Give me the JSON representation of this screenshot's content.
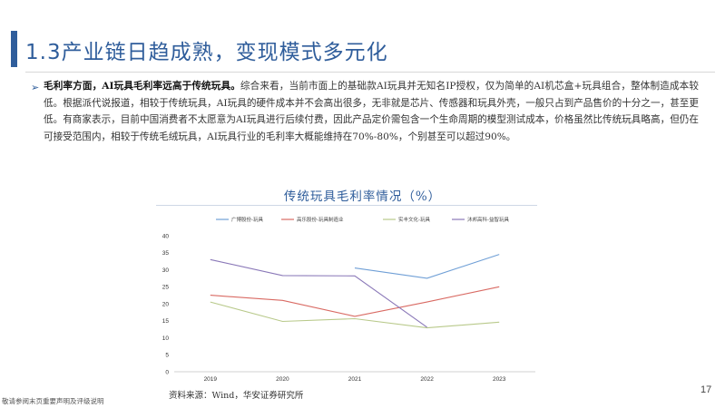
{
  "header": {
    "title": "1.3产业链日趋成熟，变现模式多元化"
  },
  "bullet_symbol": "➢",
  "body": {
    "lead": "毛利率方面，AI玩具毛利率远高于传统玩具。",
    "text": "综合来看，当前市面上的基础款AI玩具并无知名IP授权，仅为简单的AI机芯盒+玩具组合，整体制造成本较低。根据派代说报道，相较于传统玩具，AI玩具的硬件成本并不会高出很多，无非就是芯片、传感器和玩具外壳，一般只占到产品售价的十分之一，甚至更低。有商家表示，目前中国消费者不太愿意为AI玩具进行后续付费，因此产品定价需包含一个生命周期的模型测试成本，价格虽然比传统玩具略高，但仍在可接受范围内，相较于传统毛绒玩具，AI玩具行业的毛利率大概能维持在70%-80%，个别甚至可以超过90%。"
  },
  "chart_title": "传统玩具毛利率情况（%）",
  "chart_data": {
    "type": "line",
    "x": [
      "2019",
      "2020",
      "2021",
      "2022",
      "2023"
    ],
    "ylim": [
      0,
      40
    ],
    "yticks": [
      0,
      5,
      10,
      15,
      20,
      25,
      30,
      35,
      40
    ],
    "series": [
      {
        "name": "广博股份-玩具",
        "color": "#6f9fd6",
        "values": [
          null,
          null,
          30.5,
          27.5,
          34.5
        ]
      },
      {
        "name": "高乐股份-玩具制造业",
        "color": "#d96a63",
        "values": [
          22.5,
          21,
          16.3,
          20.5,
          25
        ]
      },
      {
        "name": "实丰文化-玩具",
        "color": "#b8c98a",
        "values": [
          20.5,
          14.8,
          15.6,
          12.9,
          14.6
        ]
      },
      {
        "name": "沐邦高科-益智玩具",
        "color": "#8a78b8",
        "values": [
          33,
          28.3,
          28.2,
          13.1,
          null
        ]
      }
    ]
  },
  "source": "资料来源：Wind，华安证券研究所",
  "page_number": "17",
  "disclaimer": "敬请参阅末页重要声明及评级说明"
}
